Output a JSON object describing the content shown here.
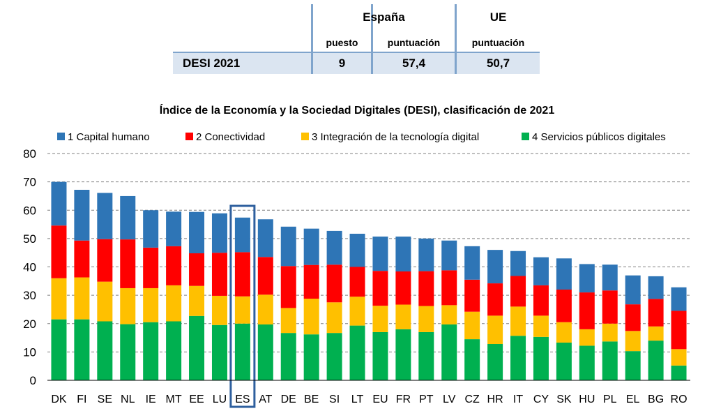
{
  "table": {
    "spain_header": "España",
    "eu_header": "UE",
    "rank_label": "puesto",
    "score_label_es": "puntuación",
    "score_label_eu": "puntuación",
    "row_label": "DESI 2021",
    "rank_value": "9",
    "score_es_value": "57,4",
    "score_eu_value": "50,7"
  },
  "chart_data": {
    "type": "bar",
    "stacked": true,
    "title": "Índice de la Economía y la Sociedad Digitales (DESI), clasificación de 2021",
    "xlabel": "",
    "ylabel": "",
    "ylim": [
      0,
      80
    ],
    "yticks": [
      "0",
      "10",
      "20",
      "30",
      "40",
      "50",
      "60",
      "70",
      "80"
    ],
    "grid": true,
    "legend_position": "top",
    "highlight_category": "ES",
    "categories": [
      "DK",
      "FI",
      "SE",
      "NL",
      "IE",
      "MT",
      "EE",
      "LU",
      "ES",
      "AT",
      "DE",
      "BE",
      "SI",
      "LT",
      "EU",
      "FR",
      "PT",
      "LV",
      "CZ",
      "HR",
      "IT",
      "CY",
      "SK",
      "HU",
      "PL",
      "EL",
      "BG",
      "RO"
    ],
    "series": [
      {
        "name": "4 Servicios públicos digitales",
        "color": "#00b050",
        "values": [
          21.5,
          21.5,
          20.8,
          19.8,
          20.5,
          20.8,
          22.7,
          19.5,
          20.0,
          19.7,
          16.7,
          16.2,
          16.7,
          19.3,
          17.0,
          18.0,
          17.0,
          19.7,
          14.5,
          12.8,
          15.7,
          15.3,
          13.3,
          12.2,
          13.7,
          10.3,
          14.0,
          5.2
        ]
      },
      {
        "name": "3 Integración de la tecnología digital",
        "color": "#ffc000",
        "values": [
          14.5,
          14.8,
          14.0,
          12.7,
          12.0,
          12.7,
          10.6,
          10.3,
          9.6,
          10.5,
          8.8,
          12.6,
          10.8,
          10.2,
          9.3,
          8.7,
          9.2,
          6.8,
          9.7,
          10.0,
          10.3,
          7.5,
          7.2,
          5.8,
          6.3,
          7.1,
          5.0,
          5.8
        ]
      },
      {
        "name": "2 Conectividad",
        "color": "#ff0000",
        "values": [
          18.6,
          13.0,
          15.0,
          17.2,
          14.3,
          13.8,
          11.5,
          15.2,
          15.6,
          13.3,
          14.8,
          11.9,
          13.3,
          10.5,
          12.3,
          11.7,
          12.3,
          12.3,
          11.3,
          11.4,
          10.8,
          10.7,
          11.5,
          13.0,
          11.7,
          9.4,
          9.7,
          13.5
        ]
      },
      {
        "name": "1 Capital humano",
        "color": "#2e75b6",
        "values": [
          15.4,
          17.9,
          16.3,
          15.3,
          13.2,
          12.2,
          14.6,
          13.9,
          12.2,
          13.3,
          13.9,
          12.8,
          11.9,
          11.7,
          12.1,
          12.3,
          11.5,
          10.5,
          11.8,
          11.8,
          8.8,
          9.9,
          11.0,
          10.0,
          9.1,
          10.2,
          8.0,
          8.3
        ]
      }
    ]
  }
}
